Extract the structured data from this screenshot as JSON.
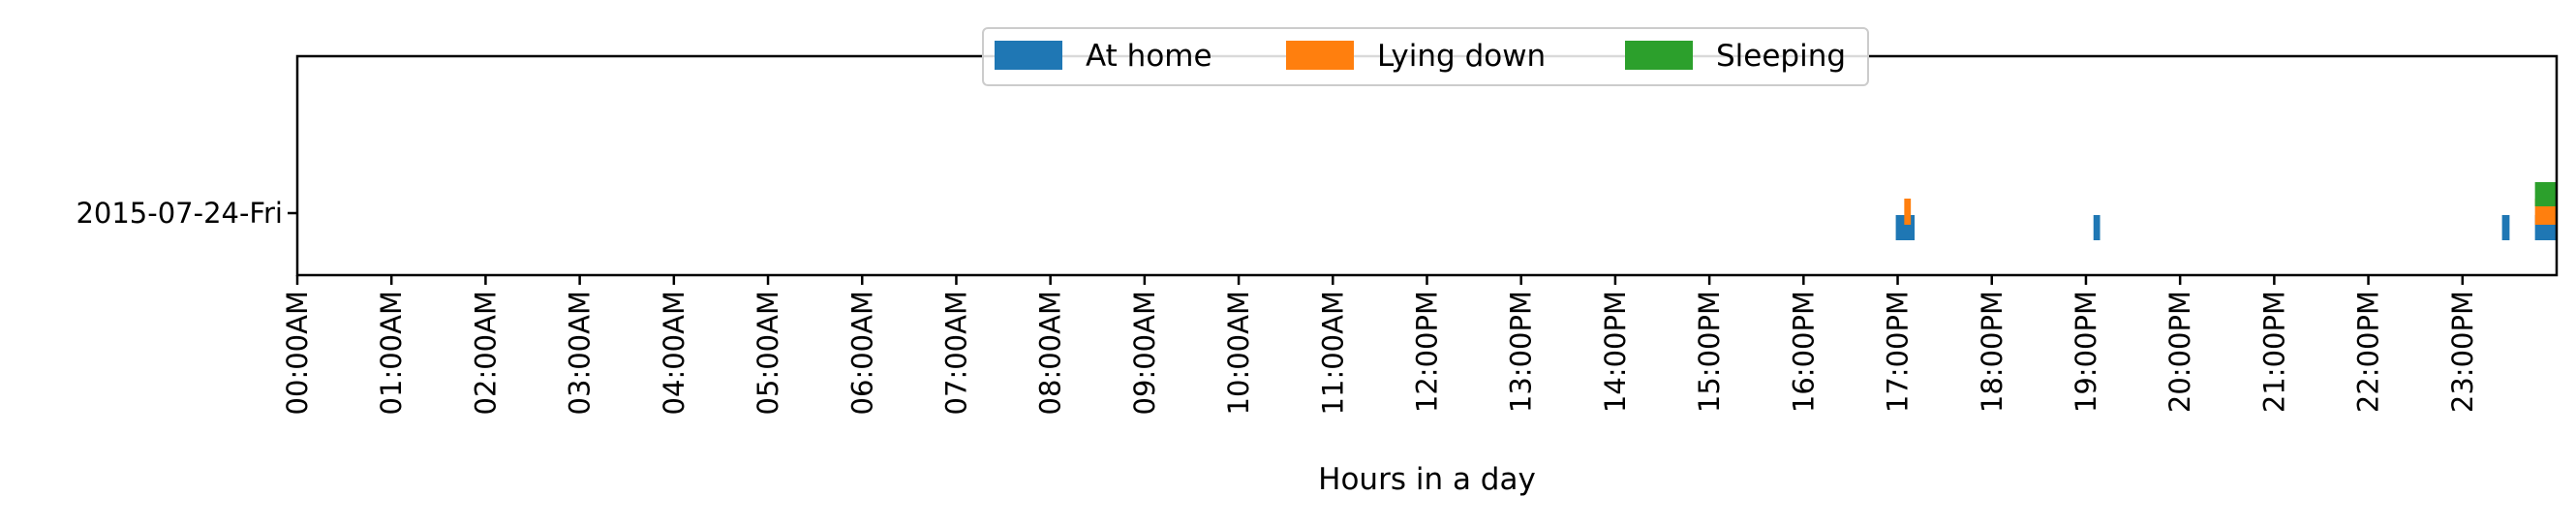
{
  "chart_data": {
    "type": "broken_barh",
    "ylabel": "",
    "xlabel": "Hours in a day",
    "y_categories": [
      "2015-07-24-Fri"
    ],
    "x_unit": "hours",
    "xlim": [
      0,
      24
    ],
    "x_ticks": [
      {
        "value": 0,
        "label": "00:00AM"
      },
      {
        "value": 1,
        "label": "01:00AM"
      },
      {
        "value": 2,
        "label": "02:00AM"
      },
      {
        "value": 3,
        "label": "03:00AM"
      },
      {
        "value": 4,
        "label": "04:00AM"
      },
      {
        "value": 5,
        "label": "05:00AM"
      },
      {
        "value": 6,
        "label": "06:00AM"
      },
      {
        "value": 7,
        "label": "07:00AM"
      },
      {
        "value": 8,
        "label": "08:00AM"
      },
      {
        "value": 9,
        "label": "09:00AM"
      },
      {
        "value": 10,
        "label": "10:00AM"
      },
      {
        "value": 11,
        "label": "11:00AM"
      },
      {
        "value": 12,
        "label": "12:00PM"
      },
      {
        "value": 13,
        "label": "13:00PM"
      },
      {
        "value": 14,
        "label": "14:00PM"
      },
      {
        "value": 15,
        "label": "15:00PM"
      },
      {
        "value": 16,
        "label": "16:00PM"
      },
      {
        "value": 17,
        "label": "17:00PM"
      },
      {
        "value": 18,
        "label": "18:00PM"
      },
      {
        "value": 19,
        "label": "19:00PM"
      },
      {
        "value": 20,
        "label": "20:00PM"
      },
      {
        "value": 21,
        "label": "21:00PM"
      },
      {
        "value": 22,
        "label": "22:00PM"
      },
      {
        "value": 23,
        "label": "23:00PM"
      }
    ],
    "grid": false,
    "legend_position": "top-center",
    "series": [
      {
        "name": "At home",
        "color": "#1f77b4",
        "segments": [
          {
            "day": "2015-07-24-Fri",
            "start": 16.98,
            "end": 17.18
          },
          {
            "day": "2015-07-24-Fri",
            "start": 19.08,
            "end": 19.15
          },
          {
            "day": "2015-07-24-Fri",
            "start": 23.42,
            "end": 23.5
          },
          {
            "day": "2015-07-24-Fri",
            "start": 23.77,
            "end": 24.0
          }
        ]
      },
      {
        "name": "Lying down",
        "color": "#ff7f0e",
        "segments": [
          {
            "day": "2015-07-24-Fri",
            "start": 17.07,
            "end": 17.14
          },
          {
            "day": "2015-07-24-Fri",
            "start": 23.77,
            "end": 24.0
          }
        ]
      },
      {
        "name": "Sleeping",
        "color": "#2ca02c",
        "segments": [
          {
            "day": "2015-07-24-Fri",
            "start": 23.77,
            "end": 24.0
          }
        ]
      }
    ]
  }
}
